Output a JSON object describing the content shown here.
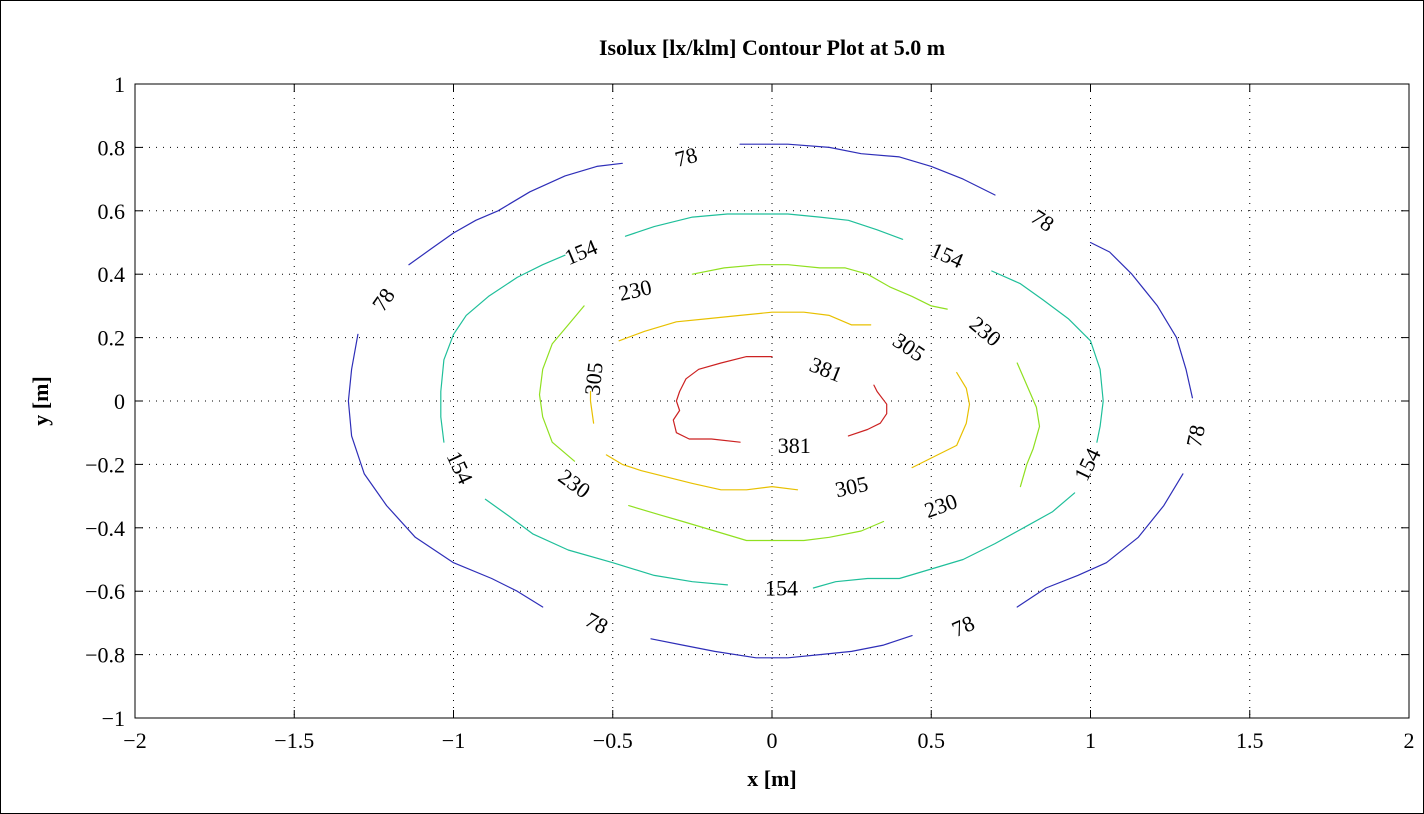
{
  "chart_data": {
    "type": "contour",
    "title": "Isolux [lx/klm] Contour Plot at 5.0 m",
    "xlabel": "x [m]",
    "ylabel": "y [m]",
    "xlim": [
      -2,
      2
    ],
    "ylim": [
      -1,
      1
    ],
    "x_ticks": [
      -2,
      -1.5,
      -1,
      -0.5,
      0,
      0.5,
      1,
      1.5,
      2
    ],
    "x_tick_labels": [
      "−2",
      "−1.5",
      "−1",
      "−0.5",
      "0",
      "0.5",
      "1",
      "1.5",
      "2"
    ],
    "y_ticks": [
      -1,
      -0.8,
      -0.6,
      -0.4,
      -0.2,
      0,
      0.2,
      0.4,
      0.6,
      0.8,
      1
    ],
    "y_tick_labels": [
      "−1",
      "−0.8",
      "−0.6",
      "−0.4",
      "−0.2",
      "0",
      "0.2",
      "0.4",
      "0.6",
      "0.8",
      "1"
    ],
    "grid": true,
    "levels": [
      {
        "value": 78,
        "color": "#2e2eb8",
        "segments": [
          [
            [
              -0.47,
              0.75
            ],
            [
              -0.55,
              0.74
            ],
            [
              -0.65,
              0.71
            ],
            [
              -0.76,
              0.66
            ],
            [
              -0.86,
              0.6
            ],
            [
              -0.93,
              0.57
            ],
            [
              -1.0,
              0.53
            ],
            [
              -1.07,
              0.48
            ],
            [
              -1.14,
              0.43
            ]
          ],
          [
            [
              -1.3,
              0.21
            ],
            [
              -1.32,
              0.1
            ],
            [
              -1.33,
              0.0
            ],
            [
              -1.32,
              -0.11
            ],
            [
              -1.28,
              -0.23
            ],
            [
              -1.21,
              -0.33
            ],
            [
              -1.12,
              -0.43
            ],
            [
              -1.0,
              -0.51
            ],
            [
              -0.88,
              -0.56
            ],
            [
              -0.8,
              -0.6
            ],
            [
              -0.72,
              -0.65
            ]
          ],
          [
            [
              -0.38,
              -0.75
            ],
            [
              -0.28,
              -0.77
            ],
            [
              -0.18,
              -0.79
            ],
            [
              -0.05,
              -0.81
            ],
            [
              0.05,
              -0.81
            ],
            [
              0.15,
              -0.8
            ],
            [
              0.25,
              -0.79
            ],
            [
              0.35,
              -0.77
            ],
            [
              0.44,
              -0.74
            ]
          ],
          [
            [
              0.77,
              -0.65
            ],
            [
              0.86,
              -0.59
            ],
            [
              0.96,
              -0.55
            ],
            [
              1.05,
              -0.51
            ],
            [
              1.15,
              -0.43
            ],
            [
              1.23,
              -0.33
            ],
            [
              1.29,
              -0.23
            ]
          ],
          [
            [
              1.32,
              0.01
            ],
            [
              1.3,
              0.1
            ],
            [
              1.27,
              0.2
            ],
            [
              1.21,
              0.3
            ],
            [
              1.13,
              0.4
            ],
            [
              1.06,
              0.47
            ],
            [
              1.0,
              0.5
            ]
          ],
          [
            [
              0.7,
              0.65
            ],
            [
              0.6,
              0.7
            ],
            [
              0.5,
              0.74
            ],
            [
              0.4,
              0.77
            ],
            [
              0.28,
              0.78
            ],
            [
              0.18,
              0.8
            ],
            [
              0.05,
              0.81
            ],
            [
              -0.1,
              0.81
            ]
          ]
        ]
      },
      {
        "value": 154,
        "color": "#1fbf9a",
        "segments": [
          [
            [
              -0.46,
              0.52
            ],
            [
              -0.37,
              0.55
            ],
            [
              -0.25,
              0.58
            ],
            [
              -0.14,
              0.59
            ],
            [
              -0.04,
              0.59
            ],
            [
              0.05,
              0.59
            ],
            [
              0.15,
              0.58
            ],
            [
              0.24,
              0.57
            ],
            [
              0.33,
              0.54
            ],
            [
              0.41,
              0.51
            ]
          ],
          [
            [
              0.69,
              0.41
            ],
            [
              0.78,
              0.37
            ],
            [
              0.85,
              0.32
            ],
            [
              0.93,
              0.26
            ],
            [
              1.0,
              0.19
            ],
            [
              1.03,
              0.1
            ],
            [
              1.04,
              0.0
            ],
            [
              1.03,
              -0.08
            ],
            [
              1.02,
              -0.13
            ]
          ],
          [
            [
              0.95,
              -0.29
            ],
            [
              0.88,
              -0.35
            ],
            [
              0.79,
              -0.4
            ],
            [
              0.7,
              -0.45
            ],
            [
              0.6,
              -0.5
            ],
            [
              0.5,
              -0.53
            ],
            [
              0.4,
              -0.56
            ],
            [
              0.3,
              -0.56
            ],
            [
              0.2,
              -0.57
            ],
            [
              0.13,
              -0.59
            ]
          ],
          [
            [
              -0.14,
              -0.58
            ],
            [
              -0.25,
              -0.57
            ],
            [
              -0.37,
              -0.55
            ],
            [
              -0.5,
              -0.51
            ],
            [
              -0.64,
              -0.47
            ],
            [
              -0.75,
              -0.42
            ],
            [
              -0.83,
              -0.36
            ],
            [
              -0.9,
              -0.31
            ]
          ],
          [
            [
              -1.03,
              -0.13
            ],
            [
              -1.04,
              -0.05
            ],
            [
              -1.04,
              0.03
            ],
            [
              -1.03,
              0.13
            ],
            [
              -1.0,
              0.21
            ],
            [
              -0.96,
              0.27
            ],
            [
              -0.89,
              0.33
            ],
            [
              -0.8,
              0.39
            ],
            [
              -0.72,
              0.43
            ],
            [
              -0.65,
              0.46
            ]
          ]
        ]
      },
      {
        "value": 230,
        "color": "#90e020",
        "segments": [
          [
            [
              -0.25,
              0.4
            ],
            [
              -0.15,
              0.42
            ],
            [
              -0.04,
              0.43
            ],
            [
              0.05,
              0.43
            ],
            [
              0.15,
              0.42
            ],
            [
              0.23,
              0.42
            ],
            [
              0.3,
              0.4
            ],
            [
              0.37,
              0.36
            ],
            [
              0.44,
              0.33
            ],
            [
              0.5,
              0.3
            ],
            [
              0.55,
              0.29
            ]
          ],
          [
            [
              0.77,
              0.12
            ],
            [
              0.8,
              0.05
            ],
            [
              0.83,
              -0.02
            ],
            [
              0.84,
              -0.08
            ],
            [
              0.82,
              -0.15
            ],
            [
              0.8,
              -0.2
            ],
            [
              0.78,
              -0.27
            ]
          ],
          [
            [
              0.35,
              -0.38
            ],
            [
              0.28,
              -0.41
            ],
            [
              0.18,
              -0.43
            ],
            [
              0.1,
              -0.44
            ],
            [
              0.0,
              -0.44
            ],
            [
              -0.08,
              -0.44
            ],
            [
              -0.18,
              -0.41
            ],
            [
              -0.28,
              -0.38
            ],
            [
              -0.35,
              -0.36
            ],
            [
              -0.45,
              -0.33
            ]
          ],
          [
            [
              -0.62,
              -0.19
            ],
            [
              -0.69,
              -0.13
            ],
            [
              -0.72,
              -0.05
            ],
            [
              -0.73,
              0.02
            ],
            [
              -0.72,
              0.1
            ],
            [
              -0.69,
              0.18
            ],
            [
              -0.64,
              0.24
            ],
            [
              -0.59,
              0.3
            ]
          ]
        ]
      },
      {
        "value": 305,
        "color": "#e8c000",
        "segments": [
          [
            [
              -0.48,
              0.19
            ],
            [
              -0.4,
              0.22
            ],
            [
              -0.3,
              0.25
            ],
            [
              -0.2,
              0.26
            ],
            [
              -0.1,
              0.27
            ],
            [
              0.0,
              0.28
            ],
            [
              0.1,
              0.28
            ],
            [
              0.18,
              0.27
            ],
            [
              0.25,
              0.24
            ],
            [
              0.31,
              0.24
            ]
          ],
          [
            [
              0.58,
              0.09
            ],
            [
              0.61,
              0.04
            ],
            [
              0.62,
              -0.01
            ],
            [
              0.61,
              -0.07
            ],
            [
              0.58,
              -0.14
            ],
            [
              0.52,
              -0.17
            ],
            [
              0.44,
              -0.21
            ]
          ],
          [
            [
              0.08,
              -0.28
            ],
            [
              0.0,
              -0.27
            ],
            [
              -0.08,
              -0.28
            ],
            [
              -0.16,
              -0.28
            ],
            [
              -0.25,
              -0.26
            ],
            [
              -0.33,
              -0.24
            ],
            [
              -0.41,
              -0.22
            ],
            [
              -0.47,
              -0.2
            ],
            [
              -0.52,
              -0.17
            ]
          ],
          [
            [
              -0.56,
              -0.07
            ],
            [
              -0.57,
              0.0
            ],
            [
              -0.57,
              0.03
            ]
          ]
        ]
      },
      {
        "value": 381,
        "color": "#cc2222",
        "segments": [
          [
            [
              0.0,
              0.14
            ],
            [
              -0.08,
              0.14
            ],
            [
              -0.16,
              0.12
            ],
            [
              -0.23,
              0.1
            ],
            [
              -0.27,
              0.07
            ],
            [
              -0.29,
              0.03
            ],
            [
              -0.3,
              0.0
            ],
            [
              -0.29,
              -0.03
            ],
            [
              -0.31,
              -0.06
            ],
            [
              -0.3,
              -0.1
            ],
            [
              -0.26,
              -0.12
            ],
            [
              -0.19,
              -0.12
            ],
            [
              -0.1,
              -0.13
            ]
          ],
          [
            [
              0.24,
              -0.11
            ],
            [
              0.3,
              -0.09
            ],
            [
              0.34,
              -0.07
            ],
            [
              0.36,
              -0.04
            ],
            [
              0.36,
              -0.01
            ],
            [
              0.33,
              0.03
            ],
            [
              0.32,
              0.05
            ]
          ]
        ]
      }
    ],
    "contour_labels": [
      {
        "text": "78",
        "x": -0.27,
        "y": 0.77,
        "angle": -15
      },
      {
        "text": "78",
        "x": 0.85,
        "y": 0.57,
        "angle": 33
      },
      {
        "text": "78",
        "x": -1.22,
        "y": 0.32,
        "angle": -55
      },
      {
        "text": "78",
        "x": 1.33,
        "y": -0.11,
        "angle": -78
      },
      {
        "text": "78",
        "x": -0.55,
        "y": -0.7,
        "angle": 27
      },
      {
        "text": "78",
        "x": 0.6,
        "y": -0.71,
        "angle": -24
      },
      {
        "text": "154",
        "x": -0.6,
        "y": 0.47,
        "angle": -23
      },
      {
        "text": "154",
        "x": 0.55,
        "y": 0.46,
        "angle": 24
      },
      {
        "text": "154",
        "x": -0.98,
        "y": -0.21,
        "angle": 65
      },
      {
        "text": "154",
        "x": 0.99,
        "y": -0.2,
        "angle": -64
      },
      {
        "text": "154",
        "x": 0.03,
        "y": -0.59,
        "angle": 0
      },
      {
        "text": "230",
        "x": -0.43,
        "y": 0.35,
        "angle": -13
      },
      {
        "text": "230",
        "x": 0.67,
        "y": 0.22,
        "angle": 40
      },
      {
        "text": "230",
        "x": -0.62,
        "y": -0.26,
        "angle": 36
      },
      {
        "text": "230",
        "x": 0.53,
        "y": -0.33,
        "angle": -20
      },
      {
        "text": "305",
        "x": 0.43,
        "y": 0.17,
        "angle": 34
      },
      {
        "text": "305",
        "x": -0.56,
        "y": 0.07,
        "angle": -84
      },
      {
        "text": "305",
        "x": 0.25,
        "y": -0.27,
        "angle": -12
      },
      {
        "text": "381",
        "x": 0.17,
        "y": 0.1,
        "angle": 22
      },
      {
        "text": "381",
        "x": 0.07,
        "y": -0.14,
        "angle": 0
      }
    ]
  }
}
